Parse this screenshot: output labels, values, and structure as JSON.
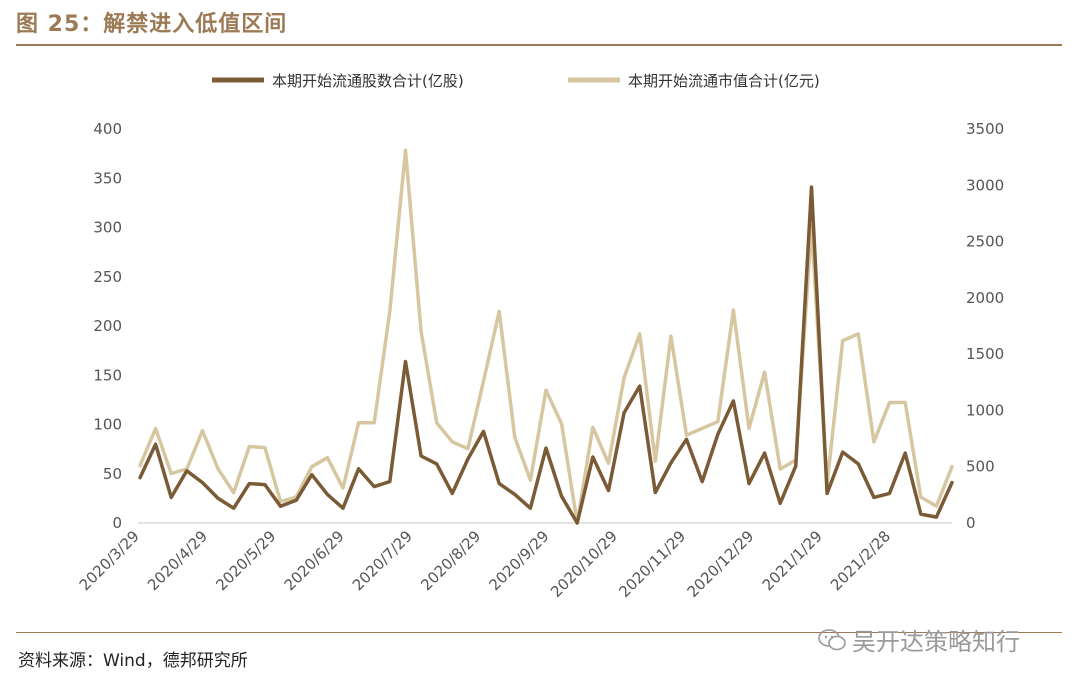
{
  "header": {
    "title": "图 25：解禁进入低值区间"
  },
  "footer": {
    "source": "资料来源：Wind，德邦研究所",
    "watermark": "吴开达策略知行"
  },
  "chart_data": {
    "type": "line",
    "x_tick_labels": [
      "2020/3/29",
      "2020/4/29",
      "2020/5/29",
      "2020/6/29",
      "2020/7/29",
      "2020/8/29",
      "2020/9/29",
      "2020/10/29",
      "2020/11/29",
      "2020/12/29",
      "2021/1/29",
      "2021/2/28"
    ],
    "y_left": {
      "min": 0,
      "max": 400,
      "ticks": [
        0,
        50,
        100,
        150,
        200,
        250,
        300,
        350,
        400
      ]
    },
    "y_right": {
      "min": 0,
      "max": 3500,
      "ticks": [
        0,
        500,
        1000,
        1500,
        2000,
        2500,
        3000,
        3500
      ]
    },
    "legend_position": "top",
    "grid": false,
    "series": [
      {
        "name": "本期开始流通股数合计(亿股)",
        "axis": "left",
        "color": "#7b5b35",
        "values": [
          46,
          80,
          26,
          53,
          41,
          25,
          15,
          40,
          39,
          17,
          23,
          49,
          29,
          15,
          55,
          37,
          42,
          164,
          68,
          60,
          30,
          65,
          93,
          40,
          29,
          15,
          76,
          27,
          0,
          67,
          33,
          112,
          139,
          31,
          61,
          85,
          42,
          90,
          124,
          40,
          71,
          20,
          58,
          341,
          30,
          72,
          60,
          26,
          30,
          71,
          9,
          6,
          41
        ]
      },
      {
        "name": "本期开始流通市值合计(亿元)",
        "axis": "right",
        "color": "#d6c7a1",
        "values": [
          510,
          840,
          440,
          480,
          820,
          480,
          270,
          680,
          670,
          190,
          230,
          500,
          580,
          310,
          890,
          890,
          1880,
          3310,
          1700,
          890,
          720,
          660,
          1260,
          1880,
          760,
          380,
          1180,
          880,
          0,
          850,
          530,
          1290,
          1680,
          550,
          1660,
          780,
          840,
          900,
          1890,
          840,
          1340,
          480,
          560,
          2640,
          350,
          1620,
          1680,
          720,
          1070,
          1070,
          230,
          150,
          500
        ]
      }
    ]
  }
}
